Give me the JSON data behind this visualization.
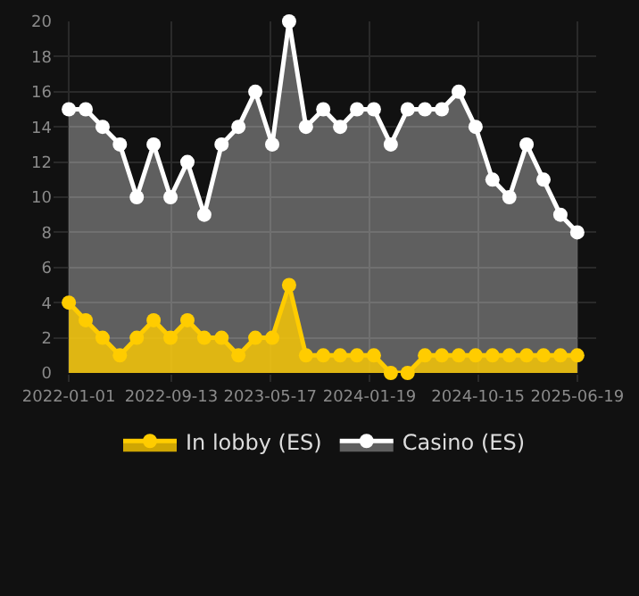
{
  "chart_data": {
    "type": "area",
    "x": [
      "2022-01-01",
      "2022-02-12",
      "2022-03-26",
      "2022-05-08",
      "2022-06-19",
      "2022-07-31",
      "2022-09-11",
      "2022-10-23",
      "2022-12-04",
      "2023-01-16",
      "2023-02-27",
      "2023-04-10",
      "2023-05-22",
      "2023-07-03",
      "2023-08-14",
      "2023-09-26",
      "2023-11-07",
      "2023-12-19",
      "2024-01-30",
      "2024-03-12",
      "2024-04-23",
      "2024-06-05",
      "2024-07-17",
      "2024-08-28",
      "2024-10-09",
      "2024-11-20",
      "2025-01-01",
      "2025-02-13",
      "2025-03-27",
      "2025-05-08",
      "2025-06-19"
    ],
    "series": [
      {
        "name": "Casino (ES)",
        "color": "#ffffff",
        "values": [
          15,
          15,
          14,
          13,
          10,
          13,
          10,
          12,
          9,
          13,
          14,
          16,
          13,
          20,
          14,
          15,
          14,
          15,
          15,
          13,
          15,
          15,
          15,
          16,
          14,
          11,
          10,
          13,
          11,
          9,
          8
        ]
      },
      {
        "name": "In lobby (ES)",
        "color": "#ffcc00",
        "values": [
          4,
          3,
          2,
          1,
          2,
          3,
          2,
          3,
          2,
          2,
          1,
          2,
          2,
          5,
          1,
          1,
          1,
          1,
          1,
          0,
          0,
          1,
          1,
          1,
          1,
          1,
          1,
          1,
          1,
          1,
          1
        ]
      }
    ],
    "xlim": [
      "2021-11-24",
      "2025-08-05"
    ],
    "xticks": [
      "2022-01-01",
      "2022-09-13",
      "2023-05-17",
      "2024-01-19",
      "2024-10-15",
      "2025-06-19"
    ],
    "ylim": [
      0,
      20
    ],
    "yticks": [
      0,
      2,
      4,
      6,
      8,
      10,
      12,
      14,
      16,
      18,
      20
    ],
    "grid": true,
    "legend": "bottom",
    "marker": "circle",
    "line_style": "solid"
  }
}
